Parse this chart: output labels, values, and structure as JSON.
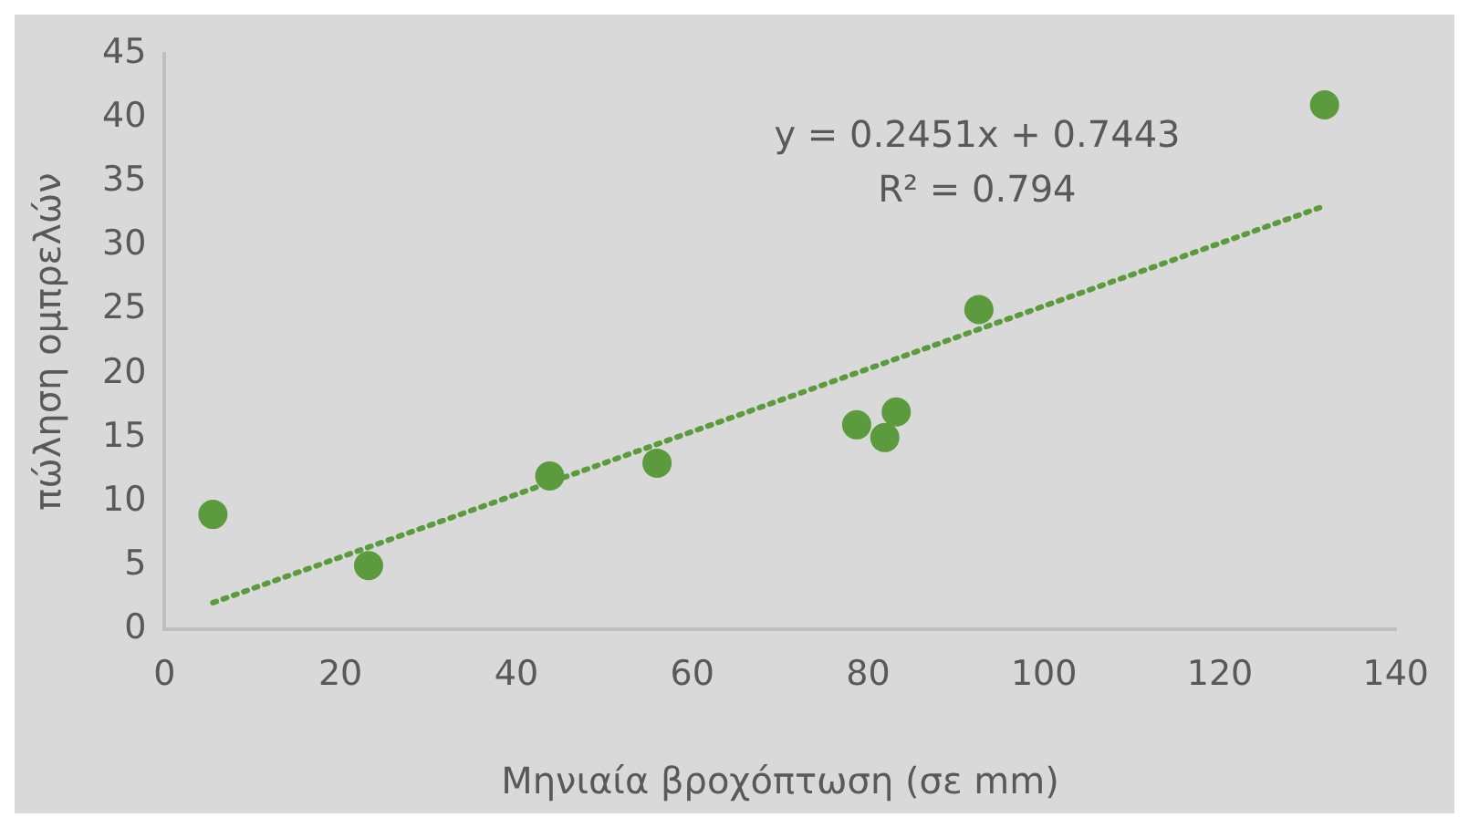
{
  "chart_data": {
    "type": "scatter",
    "xlabel": "Μηνιαία βροχόπτωση (σε mm)",
    "ylabel": "πώληση ομπρελών",
    "x": [
      5.5,
      23.2,
      43.8,
      56,
      78.7,
      81.9,
      83.2,
      92.6,
      131.9
    ],
    "series": [
      {
        "type": "scatter",
        "color": "#5b9b3d",
        "marker": "circle",
        "values": [
          9,
          5,
          12,
          13,
          16,
          15,
          17,
          25,
          41
        ]
      },
      {
        "type": "line",
        "color": "#5b9b3d",
        "line_style": "dotted",
        "marker": "none",
        "x": [
          5.5,
          131.9
        ],
        "values": [
          2.1,
          33.1
        ]
      }
    ],
    "annotations": [
      "y = 0.2451x + 0.7443",
      "R² = 0.794"
    ],
    "xlim": [
      0,
      140
    ],
    "xticks": [
      0,
      20,
      40,
      60,
      80,
      100,
      120,
      140
    ],
    "ylim": [
      0,
      45
    ],
    "yticks": [
      0,
      5,
      10,
      15,
      20,
      25,
      30,
      35,
      40,
      45
    ],
    "grid": false,
    "legend": false
  }
}
